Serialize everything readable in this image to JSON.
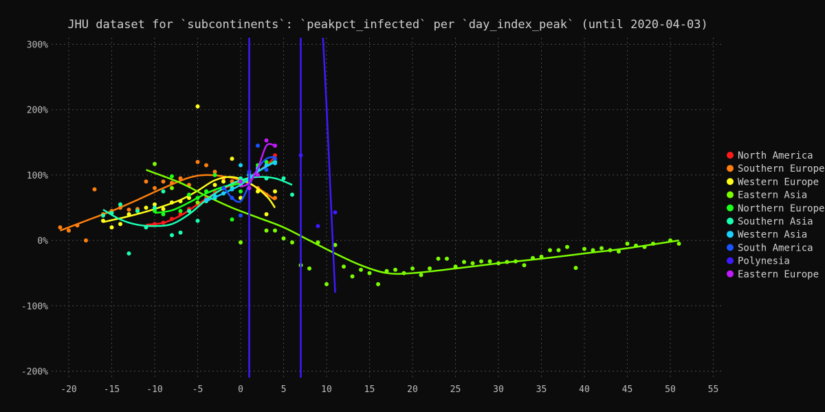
{
  "chart_data": {
    "type": "scatter",
    "title": "JHU dataset for `subcontinents`: `peakpct_infected` per `day_index_peak` (until 2020-04-03)",
    "xlabel": "",
    "ylabel": "",
    "xlim": [
      -22,
      56
    ],
    "ylim": [
      -210,
      310
    ],
    "x_ticks": [
      -20,
      -15,
      -10,
      -5,
      0,
      5,
      10,
      15,
      20,
      25,
      30,
      35,
      40,
      45,
      50,
      55
    ],
    "y_ticks": [
      -200,
      -100,
      0,
      100,
      200,
      300
    ],
    "y_tick_suffix": "%",
    "grid": true,
    "legend_position": "right",
    "series": [
      {
        "name": "North America",
        "color": "#ff1a1a",
        "points": [
          [
            -10,
            25
          ],
          [
            -9,
            27
          ],
          [
            -8,
            33
          ],
          [
            -7,
            40
          ],
          [
            -6,
            48
          ],
          [
            -5,
            55
          ],
          [
            -4,
            65
          ],
          [
            -3,
            75
          ],
          [
            -2,
            80
          ],
          [
            -1,
            82
          ],
          [
            0,
            85
          ],
          [
            1,
            95
          ],
          [
            2,
            110
          ],
          [
            3,
            115
          ],
          [
            4,
            130
          ]
        ],
        "line": [
          [
            -11,
            24
          ],
          [
            -9,
            27
          ],
          [
            -7,
            38
          ],
          [
            -5,
            55
          ],
          [
            -3,
            72
          ],
          [
            -1,
            85
          ],
          [
            1,
            97
          ],
          [
            3,
            115
          ],
          [
            4,
            128
          ]
        ]
      },
      {
        "name": "Southern Europe",
        "color": "#ff7f0e",
        "points": [
          [
            -21,
            20
          ],
          [
            -20,
            15
          ],
          [
            -19,
            23
          ],
          [
            -18,
            0
          ],
          [
            -17,
            78
          ],
          [
            -16,
            40
          ],
          [
            -15,
            45
          ],
          [
            -14,
            50
          ],
          [
            -13,
            47
          ],
          [
            -12,
            48
          ],
          [
            -11,
            90
          ],
          [
            -10,
            80
          ],
          [
            -9,
            90
          ],
          [
            -8,
            88
          ],
          [
            -7,
            95
          ],
          [
            -6,
            85
          ],
          [
            -5,
            120
          ],
          [
            -4,
            115
          ],
          [
            -3,
            105
          ],
          [
            -2,
            95
          ],
          [
            -1,
            90
          ],
          [
            0,
            85
          ],
          [
            1,
            100
          ],
          [
            2,
            80
          ],
          [
            3,
            70
          ],
          [
            4,
            65
          ]
        ],
        "line": [
          [
            -21,
            15
          ],
          [
            -18,
            30
          ],
          [
            -15,
            45
          ],
          [
            -12,
            62
          ],
          [
            -9,
            80
          ],
          [
            -6,
            96
          ],
          [
            -4,
            100
          ],
          [
            -2,
            98
          ],
          [
            0,
            92
          ],
          [
            2,
            80
          ],
          [
            4,
            62
          ]
        ]
      },
      {
        "name": "Western Europe",
        "color": "#ffff1a",
        "points": [
          [
            -16,
            30
          ],
          [
            -15,
            20
          ],
          [
            -14,
            25
          ],
          [
            -13,
            40
          ],
          [
            -12,
            45
          ],
          [
            -11,
            50
          ],
          [
            -10,
            55
          ],
          [
            -9,
            48
          ],
          [
            -8,
            58
          ],
          [
            -7,
            60
          ],
          [
            -6,
            65
          ],
          [
            -5,
            205
          ],
          [
            -4,
            75
          ],
          [
            -3,
            85
          ],
          [
            -2,
            90
          ],
          [
            -1,
            125
          ],
          [
            0,
            65
          ],
          [
            1,
            100
          ],
          [
            2,
            75
          ],
          [
            3,
            40
          ],
          [
            4,
            75
          ]
        ],
        "line": [
          [
            -16,
            28
          ],
          [
            -13,
            37
          ],
          [
            -10,
            48
          ],
          [
            -7,
            62
          ],
          [
            -5,
            76
          ],
          [
            -3,
            92
          ],
          [
            -1,
            97
          ],
          [
            1,
            88
          ],
          [
            3,
            68
          ],
          [
            4,
            50
          ]
        ]
      },
      {
        "name": "Eastern Asia",
        "color": "#7cfc00",
        "points": [
          [
            -10,
            117
          ],
          [
            -8,
            80
          ],
          [
            -5,
            58
          ],
          [
            0,
            -3
          ],
          [
            3,
            15
          ],
          [
            4,
            15
          ],
          [
            5,
            3
          ],
          [
            6,
            -3
          ],
          [
            7,
            -38
          ],
          [
            8,
            -43
          ],
          [
            9,
            -3
          ],
          [
            10,
            -67
          ],
          [
            11,
            -7
          ],
          [
            12,
            -40
          ],
          [
            13,
            -55
          ],
          [
            14,
            -45
          ],
          [
            15,
            -50
          ],
          [
            16,
            -67
          ],
          [
            17,
            -47
          ],
          [
            18,
            -45
          ],
          [
            19,
            -50
          ],
          [
            20,
            -43
          ],
          [
            21,
            -53
          ],
          [
            22,
            -43
          ],
          [
            23,
            -28
          ],
          [
            24,
            -28
          ],
          [
            25,
            -40
          ],
          [
            26,
            -33
          ],
          [
            27,
            -35
          ],
          [
            28,
            -32
          ],
          [
            29,
            -32
          ],
          [
            30,
            -35
          ],
          [
            31,
            -33
          ],
          [
            32,
            -32
          ],
          [
            33,
            -38
          ],
          [
            34,
            -27
          ],
          [
            35,
            -25
          ],
          [
            36,
            -15
          ],
          [
            37,
            -15
          ],
          [
            38,
            -10
          ],
          [
            39,
            -42
          ],
          [
            40,
            -13
          ],
          [
            41,
            -15
          ],
          [
            42,
            -12
          ],
          [
            43,
            -15
          ],
          [
            44,
            -17
          ],
          [
            45,
            -5
          ],
          [
            46,
            -8
          ],
          [
            47,
            -10
          ],
          [
            48,
            -5
          ],
          [
            50,
            0
          ],
          [
            51,
            -5
          ]
        ],
        "line": [
          [
            -11,
            108
          ],
          [
            -7,
            88
          ],
          [
            -4,
            68
          ],
          [
            -1,
            50
          ],
          [
            2,
            35
          ],
          [
            5,
            20
          ],
          [
            8,
            0
          ],
          [
            11,
            -20
          ],
          [
            14,
            -38
          ],
          [
            17,
            -50
          ],
          [
            20,
            -50
          ],
          [
            25,
            -43
          ],
          [
            30,
            -35
          ],
          [
            35,
            -28
          ],
          [
            40,
            -20
          ],
          [
            45,
            -12
          ],
          [
            51,
            0
          ]
        ]
      },
      {
        "name": "Northern Europe",
        "color": "#1aff1a",
        "points": [
          [
            -10,
            45
          ],
          [
            -9,
            40
          ],
          [
            -8,
            98
          ],
          [
            -7,
            45
          ],
          [
            -6,
            70
          ],
          [
            -5,
            65
          ],
          [
            -4,
            75
          ],
          [
            -3,
            100
          ],
          [
            -2,
            80
          ],
          [
            -1,
            32
          ],
          [
            0,
            75
          ],
          [
            1,
            90
          ],
          [
            2,
            115
          ],
          [
            3,
            120
          ],
          [
            4,
            120
          ]
        ],
        "line": [
          [
            -10,
            42
          ],
          [
            -8,
            46
          ],
          [
            -6,
            58
          ],
          [
            -4,
            72
          ],
          [
            -2,
            82
          ],
          [
            0,
            88
          ],
          [
            2,
            105
          ],
          [
            4,
            122
          ]
        ]
      },
      {
        "name": "Southern Asia",
        "color": "#1affb2",
        "points": [
          [
            -16,
            38
          ],
          [
            -15,
            42
          ],
          [
            -14,
            55
          ],
          [
            -13,
            -20
          ],
          [
            -12,
            45
          ],
          [
            -11,
            20
          ],
          [
            -10,
            50
          ],
          [
            -9,
            75
          ],
          [
            -8,
            8
          ],
          [
            -7,
            12
          ],
          [
            -6,
            45
          ],
          [
            -5,
            30
          ],
          [
            -4,
            60
          ],
          [
            -3,
            65
          ],
          [
            -2,
            72
          ],
          [
            -1,
            80
          ],
          [
            0,
            95
          ],
          [
            1,
            100
          ],
          [
            2,
            110
          ],
          [
            3,
            95
          ],
          [
            4,
            120
          ],
          [
            5,
            95
          ],
          [
            6,
            70
          ]
        ],
        "line": [
          [
            -16,
            47
          ],
          [
            -14,
            32
          ],
          [
            -12,
            24
          ],
          [
            -10,
            22
          ],
          [
            -8,
            25
          ],
          [
            -6,
            40
          ],
          [
            -4,
            62
          ],
          [
            -2,
            80
          ],
          [
            0,
            92
          ],
          [
            2,
            97
          ],
          [
            4,
            95
          ],
          [
            6,
            85
          ]
        ]
      },
      {
        "name": "Western Asia",
        "color": "#1ad1ff",
        "points": [
          [
            -4,
            62
          ],
          [
            -3,
            68
          ],
          [
            -2,
            72
          ],
          [
            -1,
            78
          ],
          [
            0,
            115
          ],
          [
            1,
            100
          ],
          [
            2,
            110
          ],
          [
            3,
            115
          ],
          [
            4,
            118
          ]
        ],
        "line": [
          [
            -4,
            60
          ],
          [
            -2,
            72
          ],
          [
            0,
            85
          ],
          [
            2,
            105
          ],
          [
            4,
            120
          ]
        ]
      },
      {
        "name": "South America",
        "color": "#1a53ff",
        "points": [
          [
            -2,
            80
          ],
          [
            -1,
            65
          ],
          [
            0,
            38
          ],
          [
            1,
            105
          ],
          [
            2,
            145
          ],
          [
            3,
            108
          ],
          [
            4,
            125
          ]
        ],
        "line": [
          [
            -2,
            82
          ],
          [
            -1,
            65
          ],
          [
            0,
            60
          ],
          [
            1,
            85
          ],
          [
            2,
            110
          ],
          [
            3,
            125
          ],
          [
            4,
            128
          ]
        ]
      },
      {
        "name": "Polynesia",
        "color": "#3d1aff",
        "points": [
          [
            7,
            130
          ],
          [
            9,
            22
          ],
          [
            11,
            43
          ]
        ],
        "line": [
          [
            9.5,
            330
          ],
          [
            10,
            205
          ],
          [
            10.5,
            60
          ],
          [
            11,
            -80
          ]
        ],
        "vlines": [
          1,
          7
        ]
      },
      {
        "name": "Eastern Europe",
        "color": "#c21aff",
        "points": [
          [
            0,
            90
          ],
          [
            1,
            80
          ],
          [
            2,
            100
          ],
          [
            3,
            153
          ],
          [
            4,
            145
          ]
        ],
        "line": [
          [
            0,
            82
          ],
          [
            1,
            88
          ],
          [
            2,
            110
          ],
          [
            3,
            145
          ],
          [
            4,
            145
          ]
        ]
      }
    ]
  }
}
